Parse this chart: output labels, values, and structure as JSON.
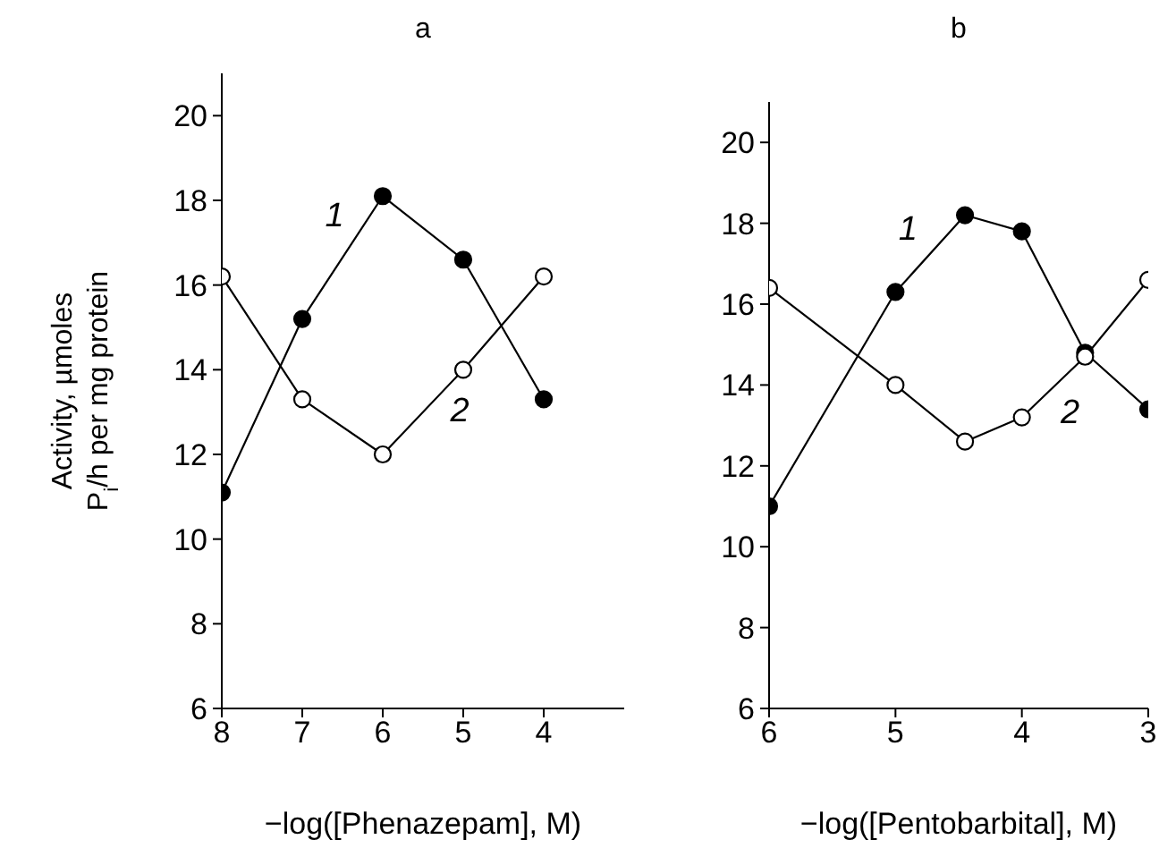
{
  "chart_data": [
    {
      "type": "line",
      "title": "a",
      "xlabel": "−log([Phenazepam], M)",
      "ylabel": "Activity, µmoles P$_{i}$/h per mg protein",
      "x": [
        8,
        7,
        6,
        5,
        4
      ],
      "series": [
        {
          "name": "1",
          "color": "#000000",
          "colors": [
            "#000000",
            "#000000",
            "#000000",
            "#000000",
            "#000000"
          ],
          "values": [
            11.1,
            15.2,
            18.1,
            16.6,
            13.3
          ]
        },
        {
          "name": "2",
          "color": "#000000",
          "colors": [
            "#ffffff",
            "#ffffff",
            "#ffffff",
            "#ffffff",
            "#ffffff"
          ],
          "values": [
            16.2,
            13.3,
            12.0,
            14.0,
            16.2
          ]
        }
      ],
      "xlim": [
        8,
        3
      ],
      "xticks": [
        8,
        7,
        6,
        5,
        4
      ],
      "ylim": [
        6,
        21
      ],
      "yticks": [
        6,
        8,
        10,
        12,
        14,
        16,
        18,
        20
      ],
      "grid": false,
      "legend": false,
      "marker": "circle",
      "line_style": "solid"
    },
    {
      "type": "line",
      "title": "b",
      "xlabel": "−log([Pentobarbital], M)",
      "x": [
        6,
        5,
        4.45,
        4,
        3.5,
        3
      ],
      "series": [
        {
          "name": "1",
          "color": "#000000",
          "colors": [
            "#000000",
            "#000000",
            "#000000",
            "#000000",
            "#000000",
            "#000000"
          ],
          "values": [
            11.0,
            16.3,
            18.2,
            17.8,
            14.8,
            13.4
          ]
        },
        {
          "name": "2",
          "color": "#000000",
          "colors": [
            "#ffffff",
            "#ffffff",
            "#ffffff",
            "#ffffff",
            "#ffffff",
            "#ffffff"
          ],
          "values": [
            16.4,
            14.0,
            12.6,
            13.2,
            14.7,
            16.6
          ]
        }
      ],
      "xlim": [
        6,
        3
      ],
      "xticks": [
        6,
        5,
        4,
        3
      ],
      "ylim": [
        6,
        21
      ],
      "yticks": [
        6,
        8,
        10,
        12,
        14,
        16,
        18,
        20
      ],
      "grid": false,
      "legend": false,
      "marker": "circle",
      "line_style": "solid"
    }
  ]
}
